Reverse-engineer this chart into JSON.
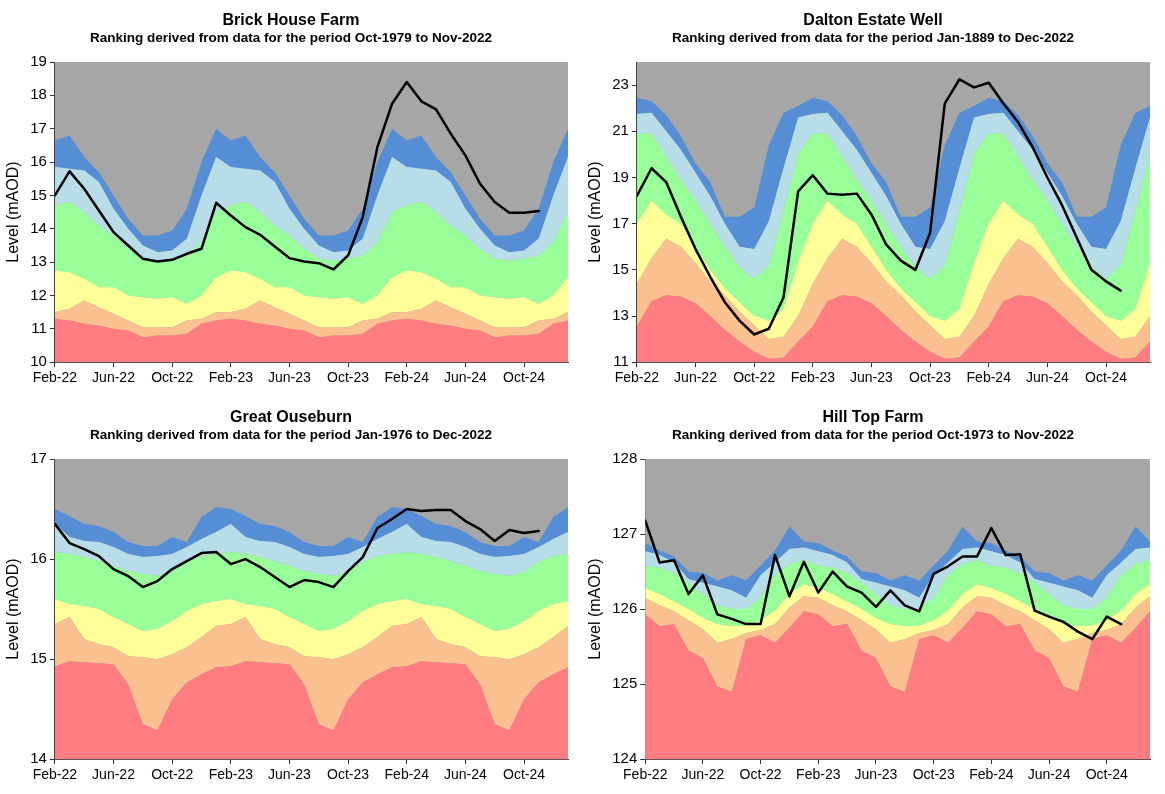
{
  "chart_data": [
    {
      "type": "area",
      "title": "Brick House Farm",
      "subtitle": "Ranking derived from data for the period Oct-1979 to Nov-2022",
      "ylabel": "Level (mAOD)",
      "legend": false,
      "x": [
        "2022-02",
        "2022-03",
        "2022-04",
        "2022-05",
        "2022-06",
        "2022-07",
        "2022-08",
        "2022-09",
        "2022-10",
        "2022-11",
        "2022-12",
        "2023-01",
        "2023-02",
        "2023-03",
        "2023-04",
        "2023-05",
        "2023-06",
        "2023-07",
        "2023-08",
        "2023-09",
        "2023-10",
        "2023-11",
        "2023-12",
        "2024-01",
        "2024-02",
        "2024-03",
        "2024-04",
        "2024-05",
        "2024-06",
        "2024-07",
        "2024-08",
        "2024-09",
        "2024-10",
        "2024-11",
        "2024-12",
        "2025-01"
      ],
      "xlim": [
        "2022-02",
        "2025-01"
      ],
      "xticks": [
        {
          "value": "2022-02",
          "label": "Feb-22"
        },
        {
          "value": "2022-06",
          "label": "Jun-22"
        },
        {
          "value": "2022-10",
          "label": "Oct-22"
        },
        {
          "value": "2023-02",
          "label": "Feb-23"
        },
        {
          "value": "2023-06",
          "label": "Jun-23"
        },
        {
          "value": "2023-10",
          "label": "Oct-23"
        },
        {
          "value": "2024-02",
          "label": "Feb-24"
        },
        {
          "value": "2024-06",
          "label": "Jun-24"
        },
        {
          "value": "2024-10",
          "label": "Oct-24"
        }
      ],
      "ylim": [
        10,
        19
      ],
      "yticks": [
        10,
        11,
        12,
        13,
        14,
        15,
        16,
        17,
        18,
        19
      ],
      "series": [
        {
          "color": "#ff7c80",
          "values": [
            11.3,
            11.25,
            11.15,
            11.1,
            11.0,
            10.95,
            10.75,
            10.8,
            10.8,
            10.85,
            11.15,
            11.25,
            11.3,
            11.25,
            11.15,
            11.1,
            11.0,
            10.95,
            10.75,
            10.8,
            10.8,
            10.85,
            11.15,
            11.25,
            11.3,
            11.25,
            11.15,
            11.1,
            11.0,
            10.95,
            10.75,
            10.8,
            10.8,
            10.85,
            11.15,
            11.25
          ]
        },
        {
          "color": "#fac090",
          "values": [
            11.5,
            11.6,
            11.85,
            11.65,
            11.45,
            11.25,
            11.05,
            11.05,
            11.05,
            11.25,
            11.3,
            11.5,
            11.5,
            11.6,
            11.85,
            11.65,
            11.45,
            11.25,
            11.05,
            11.05,
            11.05,
            11.25,
            11.3,
            11.5,
            11.5,
            11.6,
            11.85,
            11.65,
            11.45,
            11.25,
            11.05,
            11.05,
            11.05,
            11.25,
            11.3,
            11.5
          ]
        },
        {
          "color": "#ffff99",
          "values": [
            12.75,
            12.7,
            12.5,
            12.25,
            12.25,
            12.0,
            11.95,
            11.9,
            11.95,
            11.75,
            12.0,
            12.55,
            12.75,
            12.7,
            12.5,
            12.25,
            12.25,
            12.0,
            11.95,
            11.9,
            11.95,
            11.75,
            12.0,
            12.55,
            12.75,
            12.7,
            12.5,
            12.25,
            12.25,
            12.0,
            11.95,
            11.9,
            11.95,
            11.75,
            12.0,
            12.55
          ]
        },
        {
          "color": "#99ff99",
          "values": [
            14.7,
            14.8,
            14.5,
            14.1,
            13.8,
            13.4,
            13.1,
            13.05,
            13.1,
            13.2,
            13.6,
            14.5,
            14.7,
            14.8,
            14.5,
            14.1,
            13.8,
            13.4,
            13.1,
            13.05,
            13.1,
            13.2,
            13.6,
            14.5,
            14.7,
            14.8,
            14.5,
            14.1,
            13.8,
            13.4,
            13.1,
            13.05,
            13.1,
            13.2,
            13.6,
            14.5
          ]
        },
        {
          "color": "#b7dde8",
          "values": [
            15.85,
            15.8,
            15.75,
            15.4,
            14.6,
            14.0,
            13.5,
            13.3,
            13.35,
            13.7,
            15.0,
            16.15,
            15.85,
            15.8,
            15.75,
            15.4,
            14.6,
            14.0,
            13.5,
            13.3,
            13.35,
            13.7,
            15.0,
            16.15,
            15.85,
            15.8,
            15.75,
            15.4,
            14.6,
            14.0,
            13.5,
            13.3,
            13.35,
            13.7,
            15.0,
            16.15
          ]
        },
        {
          "color": "#558ed5",
          "values": [
            16.65,
            16.8,
            16.15,
            15.7,
            15.0,
            14.3,
            13.8,
            13.8,
            13.95,
            14.6,
            16.0,
            17.0,
            16.65,
            16.8,
            16.15,
            15.7,
            15.0,
            14.3,
            13.8,
            13.8,
            13.95,
            14.6,
            16.0,
            17.0,
            16.65,
            16.8,
            16.15,
            15.7,
            15.0,
            14.3,
            13.8,
            13.8,
            13.95,
            14.6,
            16.0,
            17.0
          ]
        },
        {
          "type": "line",
          "color": "#000000",
          "values": [
            15.0,
            15.72,
            15.2,
            14.55,
            13.9,
            13.5,
            13.1,
            13.02,
            13.07,
            13.25,
            13.4,
            14.78,
            14.4,
            14.05,
            13.82,
            13.47,
            13.12,
            13.02,
            12.97,
            12.78,
            13.2,
            14.35,
            16.45,
            17.75,
            18.4,
            17.82,
            17.58,
            16.85,
            16.2,
            15.35,
            14.8,
            14.48,
            14.48,
            14.53,
            null,
            null
          ]
        }
      ]
    },
    {
      "type": "area",
      "title": "Dalton Estate Well",
      "subtitle": "Ranking derived from data for the period Jan-1889 to Dec-2022",
      "ylabel": "Level (mAOD)",
      "legend": false,
      "x": [
        "2022-02",
        "2022-03",
        "2022-04",
        "2022-05",
        "2022-06",
        "2022-07",
        "2022-08",
        "2022-09",
        "2022-10",
        "2022-11",
        "2022-12",
        "2023-01",
        "2023-02",
        "2023-03",
        "2023-04",
        "2023-05",
        "2023-06",
        "2023-07",
        "2023-08",
        "2023-09",
        "2023-10",
        "2023-11",
        "2023-12",
        "2024-01",
        "2024-02",
        "2024-03",
        "2024-04",
        "2024-05",
        "2024-06",
        "2024-07",
        "2024-08",
        "2024-09",
        "2024-10",
        "2024-11",
        "2024-12",
        "2025-01"
      ],
      "xlim": [
        "2022-02",
        "2025-01"
      ],
      "xticks": [
        {
          "value": "2022-02",
          "label": "Feb-22"
        },
        {
          "value": "2022-06",
          "label": "Jun-22"
        },
        {
          "value": "2022-10",
          "label": "Oct-22"
        },
        {
          "value": "2023-02",
          "label": "Feb-23"
        },
        {
          "value": "2023-06",
          "label": "Jun-23"
        },
        {
          "value": "2023-10",
          "label": "Oct-23"
        },
        {
          "value": "2024-02",
          "label": "Feb-24"
        },
        {
          "value": "2024-06",
          "label": "Jun-24"
        },
        {
          "value": "2024-10",
          "label": "Oct-24"
        }
      ],
      "ylim": [
        11,
        24
      ],
      "yticks": [
        11,
        13,
        15,
        17,
        19,
        21,
        23
      ],
      "series": [
        {
          "color": "#ff7c80",
          "values": [
            12.55,
            13.65,
            13.9,
            13.85,
            13.55,
            13.0,
            12.4,
            11.9,
            11.45,
            11.15,
            11.2,
            11.9,
            12.55,
            13.65,
            13.9,
            13.85,
            13.55,
            13.0,
            12.4,
            11.9,
            11.45,
            11.15,
            11.2,
            11.9,
            12.55,
            13.65,
            13.9,
            13.85,
            13.55,
            13.0,
            12.4,
            11.9,
            11.45,
            11.15,
            11.2,
            11.9
          ]
        },
        {
          "color": "#fac090",
          "values": [
            14.4,
            15.5,
            16.35,
            16.0,
            15.3,
            14.5,
            13.9,
            13.2,
            12.6,
            12.0,
            12.1,
            13.0,
            14.4,
            15.5,
            16.35,
            16.0,
            15.3,
            14.5,
            13.9,
            13.2,
            12.6,
            12.0,
            12.1,
            13.0,
            14.4,
            15.5,
            16.35,
            16.0,
            15.3,
            14.5,
            13.9,
            13.2,
            12.6,
            12.0,
            12.1,
            13.0
          ]
        },
        {
          "color": "#ffff99",
          "values": [
            17.0,
            18.0,
            17.4,
            17.0,
            16.0,
            15.0,
            14.2,
            13.6,
            13.0,
            12.8,
            13.3,
            15.3,
            17.0,
            18.0,
            17.4,
            17.0,
            16.0,
            15.0,
            14.2,
            13.6,
            13.0,
            12.8,
            13.3,
            15.3,
            17.0,
            18.0,
            17.4,
            17.0,
            16.0,
            15.0,
            14.2,
            13.6,
            13.0,
            12.8,
            13.3,
            15.3
          ]
        },
        {
          "color": "#99ff99",
          "values": [
            20.9,
            20.9,
            19.9,
            18.9,
            18.0,
            17.0,
            16.0,
            15.1,
            14.6,
            15.2,
            17.5,
            20.0,
            20.9,
            20.9,
            19.9,
            18.9,
            18.0,
            17.0,
            16.0,
            15.1,
            14.6,
            15.2,
            17.5,
            20.0,
            20.9,
            20.9,
            19.9,
            18.9,
            18.0,
            17.0,
            16.0,
            15.1,
            14.6,
            15.2,
            17.5,
            20.0
          ]
        },
        {
          "color": "#b7dde8",
          "values": [
            21.75,
            21.8,
            21.0,
            20.2,
            19.2,
            18.2,
            17.0,
            16.0,
            15.9,
            17.1,
            19.4,
            21.6,
            21.75,
            21.8,
            21.0,
            20.2,
            19.2,
            18.2,
            17.0,
            16.0,
            15.9,
            17.1,
            19.4,
            21.6,
            21.75,
            21.8,
            21.0,
            20.2,
            19.2,
            18.2,
            17.0,
            16.0,
            15.9,
            17.1,
            19.4,
            21.6
          ]
        },
        {
          "color": "#558ed5",
          "values": [
            22.45,
            22.3,
            21.7,
            20.8,
            19.6,
            18.8,
            17.3,
            17.3,
            17.7,
            20.4,
            21.8,
            22.1,
            22.45,
            22.3,
            21.7,
            20.8,
            19.6,
            18.8,
            17.3,
            17.3,
            17.7,
            20.4,
            21.8,
            22.1,
            22.45,
            22.3,
            21.7,
            20.8,
            19.6,
            18.8,
            17.3,
            17.3,
            17.7,
            20.4,
            21.8,
            22.1
          ]
        },
        {
          "type": "line",
          "color": "#000000",
          "values": [
            18.2,
            19.4,
            18.8,
            17.3,
            15.9,
            14.7,
            13.6,
            12.8,
            12.2,
            12.45,
            13.8,
            18.4,
            19.1,
            18.3,
            18.25,
            18.3,
            17.4,
            16.1,
            15.4,
            15.0,
            16.6,
            22.2,
            23.25,
            22.9,
            23.1,
            22.2,
            21.4,
            20.3,
            19.0,
            17.8,
            16.4,
            15.0,
            14.5,
            14.1,
            null,
            null
          ]
        }
      ]
    },
    {
      "type": "area",
      "title": "Great Ouseburn",
      "subtitle": "Ranking derived from data for the period Jan-1976 to Dec-2022",
      "ylabel": "Level (mAOD)",
      "legend": false,
      "x": [
        "2022-02",
        "2022-03",
        "2022-04",
        "2022-05",
        "2022-06",
        "2022-07",
        "2022-08",
        "2022-09",
        "2022-10",
        "2022-11",
        "2022-12",
        "2023-01",
        "2023-02",
        "2023-03",
        "2023-04",
        "2023-05",
        "2023-06",
        "2023-07",
        "2023-08",
        "2023-09",
        "2023-10",
        "2023-11",
        "2023-12",
        "2024-01",
        "2024-02",
        "2024-03",
        "2024-04",
        "2024-05",
        "2024-06",
        "2024-07",
        "2024-08",
        "2024-09",
        "2024-10",
        "2024-11",
        "2024-12",
        "2025-01"
      ],
      "xlim": [
        "2022-02",
        "2025-01"
      ],
      "xticks": [
        {
          "value": "2022-02",
          "label": "Feb-22"
        },
        {
          "value": "2022-06",
          "label": "Jun-22"
        },
        {
          "value": "2022-10",
          "label": "Oct-22"
        },
        {
          "value": "2023-02",
          "label": "Feb-23"
        },
        {
          "value": "2023-06",
          "label": "Jun-23"
        },
        {
          "value": "2023-10",
          "label": "Oct-23"
        },
        {
          "value": "2024-02",
          "label": "Feb-24"
        },
        {
          "value": "2024-06",
          "label": "Jun-24"
        },
        {
          "value": "2024-10",
          "label": "Oct-24"
        }
      ],
      "ylim": [
        14,
        17
      ],
      "yticks": [
        14,
        15,
        16,
        17
      ],
      "series": [
        {
          "color": "#ff7c80",
          "values": [
            14.93,
            14.98,
            14.97,
            14.96,
            14.95,
            14.75,
            14.35,
            14.29,
            14.6,
            14.77,
            14.85,
            14.92,
            14.93,
            14.98,
            14.97,
            14.96,
            14.95,
            14.75,
            14.35,
            14.29,
            14.6,
            14.77,
            14.85,
            14.92,
            14.93,
            14.98,
            14.97,
            14.96,
            14.95,
            14.75,
            14.35,
            14.29,
            14.6,
            14.77,
            14.85,
            14.92
          ]
        },
        {
          "color": "#fac090",
          "values": [
            15.35,
            15.42,
            15.2,
            15.15,
            15.12,
            15.03,
            15.02,
            15.0,
            15.05,
            15.12,
            15.22,
            15.33,
            15.35,
            15.42,
            15.2,
            15.15,
            15.12,
            15.03,
            15.02,
            15.0,
            15.05,
            15.12,
            15.22,
            15.33,
            15.35,
            15.42,
            15.2,
            15.15,
            15.12,
            15.03,
            15.02,
            15.0,
            15.05,
            15.12,
            15.22,
            15.33
          ]
        },
        {
          "color": "#ffff99",
          "values": [
            15.6,
            15.55,
            15.53,
            15.5,
            15.42,
            15.35,
            15.28,
            15.3,
            15.38,
            15.48,
            15.55,
            15.58,
            15.6,
            15.55,
            15.53,
            15.5,
            15.42,
            15.35,
            15.28,
            15.3,
            15.38,
            15.48,
            15.55,
            15.58,
            15.6,
            15.55,
            15.53,
            15.5,
            15.42,
            15.35,
            15.28,
            15.3,
            15.38,
            15.48,
            15.55,
            15.58
          ]
        },
        {
          "color": "#99ff99",
          "values": [
            16.07,
            16.05,
            16.02,
            15.98,
            15.93,
            15.88,
            15.85,
            15.83,
            15.87,
            15.97,
            16.03,
            16.05,
            16.07,
            16.05,
            16.02,
            15.98,
            15.93,
            15.88,
            15.85,
            15.83,
            15.87,
            15.97,
            16.03,
            16.05,
            16.07,
            16.05,
            16.02,
            15.98,
            15.93,
            15.88,
            15.85,
            15.83,
            15.87,
            15.97,
            16.03,
            16.05
          ]
        },
        {
          "color": "#b7dde8",
          "values": [
            16.35,
            16.22,
            16.18,
            16.17,
            16.12,
            16.05,
            16.02,
            16.03,
            16.05,
            16.12,
            16.2,
            16.27,
            16.35,
            16.22,
            16.18,
            16.17,
            16.12,
            16.05,
            16.02,
            16.03,
            16.05,
            16.12,
            16.2,
            16.27,
            16.35,
            16.22,
            16.18,
            16.17,
            16.12,
            16.05,
            16.02,
            16.03,
            16.05,
            16.12,
            16.2,
            16.27
          ]
        },
        {
          "color": "#558ed5",
          "values": [
            16.5,
            16.43,
            16.35,
            16.33,
            16.27,
            16.17,
            16.13,
            16.13,
            16.22,
            16.17,
            16.42,
            16.52,
            16.5,
            16.43,
            16.35,
            16.33,
            16.27,
            16.17,
            16.13,
            16.13,
            16.22,
            16.17,
            16.42,
            16.52,
            16.5,
            16.43,
            16.35,
            16.33,
            16.27,
            16.17,
            16.13,
            16.13,
            16.22,
            16.17,
            16.42,
            16.52
          ]
        },
        {
          "type": "line",
          "color": "#000000",
          "values": [
            16.35,
            16.16,
            16.1,
            16.03,
            15.9,
            15.83,
            15.72,
            15.78,
            15.9,
            15.98,
            16.06,
            16.07,
            15.95,
            16.0,
            15.92,
            15.82,
            15.72,
            15.79,
            15.77,
            15.72,
            15.88,
            16.02,
            16.31,
            16.4,
            16.5,
            16.48,
            16.49,
            16.49,
            16.38,
            16.3,
            16.18,
            16.29,
            16.26,
            16.28,
            null,
            null
          ]
        }
      ]
    },
    {
      "type": "area",
      "title": "Hill Top Farm",
      "subtitle": "Ranking derived from data for the period Oct-1973 to Nov-2022",
      "ylabel": "Level (mAOD)",
      "legend": false,
      "x": [
        "2022-02",
        "2022-03",
        "2022-04",
        "2022-05",
        "2022-06",
        "2022-07",
        "2022-08",
        "2022-09",
        "2022-10",
        "2022-11",
        "2022-12",
        "2023-01",
        "2023-02",
        "2023-03",
        "2023-04",
        "2023-05",
        "2023-06",
        "2023-07",
        "2023-08",
        "2023-09",
        "2023-10",
        "2023-11",
        "2023-12",
        "2024-01",
        "2024-02",
        "2024-03",
        "2024-04",
        "2024-05",
        "2024-06",
        "2024-07",
        "2024-08",
        "2024-09",
        "2024-10",
        "2024-11",
        "2024-12",
        "2025-01"
      ],
      "xlim": [
        "2022-02",
        "2025-01"
      ],
      "xticks": [
        {
          "value": "2022-02",
          "label": "Feb-22"
        },
        {
          "value": "2022-06",
          "label": "Jun-22"
        },
        {
          "value": "2022-10",
          "label": "Oct-22"
        },
        {
          "value": "2023-02",
          "label": "Feb-23"
        },
        {
          "value": "2023-06",
          "label": "Jun-23"
        },
        {
          "value": "2023-10",
          "label": "Oct-23"
        },
        {
          "value": "2024-02",
          "label": "Feb-24"
        },
        {
          "value": "2024-06",
          "label": "Jun-24"
        },
        {
          "value": "2024-10",
          "label": "Oct-24"
        }
      ],
      "ylim": [
        124,
        128
      ],
      "yticks": [
        124,
        125,
        126,
        127,
        128
      ],
      "series": [
        {
          "color": "#ff7c80",
          "values": [
            125.93,
            125.77,
            125.8,
            125.45,
            125.35,
            124.97,
            124.9,
            125.6,
            125.65,
            125.55,
            125.75,
            125.97,
            125.93,
            125.77,
            125.8,
            125.45,
            125.35,
            124.97,
            124.9,
            125.6,
            125.65,
            125.55,
            125.75,
            125.97,
            125.93,
            125.77,
            125.8,
            125.45,
            125.35,
            124.97,
            124.9,
            125.6,
            125.65,
            125.55,
            125.75,
            125.97
          ]
        },
        {
          "color": "#fac090",
          "values": [
            126.15,
            126.05,
            125.97,
            125.85,
            125.73,
            125.55,
            125.6,
            125.68,
            125.72,
            125.8,
            126.02,
            126.17,
            126.15,
            126.05,
            125.97,
            125.85,
            125.73,
            125.55,
            125.6,
            125.68,
            125.72,
            125.8,
            126.02,
            126.17,
            126.15,
            126.05,
            125.97,
            125.85,
            125.73,
            125.55,
            125.6,
            125.68,
            125.72,
            125.8,
            126.02,
            126.17
          ]
        },
        {
          "color": "#ffff99",
          "values": [
            126.28,
            126.2,
            126.1,
            126.0,
            125.88,
            125.8,
            125.77,
            125.78,
            125.85,
            125.98,
            126.2,
            126.33,
            126.28,
            126.2,
            126.1,
            126.0,
            125.88,
            125.8,
            125.77,
            125.78,
            125.85,
            125.98,
            126.2,
            126.33,
            126.28,
            126.2,
            126.1,
            126.0,
            125.88,
            125.8,
            125.77,
            125.78,
            125.85,
            125.98,
            126.2,
            126.33
          ]
        },
        {
          "color": "#99ff99",
          "values": [
            126.58,
            126.55,
            126.48,
            126.35,
            126.2,
            126.05,
            126.0,
            126.0,
            126.15,
            126.45,
            126.6,
            126.65,
            126.58,
            126.55,
            126.48,
            126.35,
            126.2,
            126.05,
            126.0,
            126.0,
            126.15,
            126.45,
            126.6,
            126.65,
            126.58,
            126.55,
            126.48,
            126.35,
            126.2,
            126.05,
            126.0,
            126.0,
            126.15,
            126.45,
            126.6,
            126.65
          ]
        },
        {
          "color": "#b7dde8",
          "values": [
            126.77,
            126.72,
            126.62,
            126.4,
            126.35,
            126.3,
            126.25,
            126.15,
            126.45,
            126.62,
            126.8,
            126.82,
            126.77,
            126.72,
            126.62,
            126.4,
            126.35,
            126.3,
            126.25,
            126.15,
            126.45,
            126.62,
            126.8,
            126.82,
            126.77,
            126.72,
            126.62,
            126.4,
            126.35,
            126.3,
            126.25,
            126.15,
            126.45,
            126.62,
            126.8,
            126.82
          ]
        },
        {
          "color": "#558ed5",
          "values": [
            126.88,
            126.78,
            126.7,
            126.5,
            126.48,
            126.38,
            126.45,
            126.38,
            126.58,
            126.78,
            127.1,
            126.9,
            126.88,
            126.78,
            126.7,
            126.5,
            126.48,
            126.38,
            126.45,
            126.38,
            126.58,
            126.78,
            127.1,
            126.9,
            126.88,
            126.78,
            126.7,
            126.5,
            126.48,
            126.38,
            126.45,
            126.38,
            126.58,
            126.78,
            127.1,
            126.9
          ]
        },
        {
          "type": "line",
          "color": "#000000",
          "values": [
            127.18,
            126.62,
            126.65,
            126.2,
            126.45,
            125.93,
            125.87,
            125.8,
            125.8,
            126.72,
            126.17,
            126.63,
            126.22,
            126.5,
            126.3,
            126.22,
            126.03,
            126.25,
            126.05,
            125.97,
            126.47,
            126.57,
            126.7,
            126.7,
            127.08,
            126.72,
            126.73,
            125.98,
            125.9,
            125.83,
            125.7,
            125.6,
            125.9,
            125.8,
            null,
            null
          ]
        }
      ]
    }
  ]
}
